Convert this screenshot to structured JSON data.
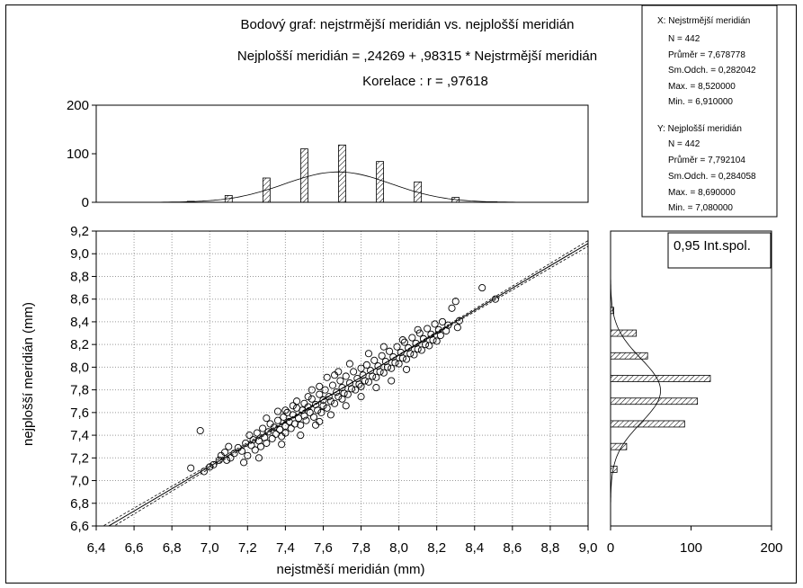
{
  "chart_data": {
    "type": "scatter",
    "title_lines": [
      "Bodový graf: nejstrmější meridián vs. nejplošší meridián",
      "Nejplošší meridián    = ,24269 + ,98315 * Nejstrmější meridián",
      "Korelace :   r = ,97618"
    ],
    "xlabel": "nejstměší meridián (mm)",
    "ylabel": "nejplošší meridián (mm)",
    "xlim": [
      6.4,
      9.0
    ],
    "ylim": [
      6.6,
      9.2
    ],
    "x_ticks": [
      "6,4",
      "6,6",
      "6,8",
      "7,0",
      "7,2",
      "7,4",
      "7,6",
      "7,8",
      "8,0",
      "8,2",
      "8,4",
      "8,6",
      "8,8",
      "9,0"
    ],
    "y_ticks": [
      "6,6",
      "6,8",
      "7,0",
      "7,2",
      "7,4",
      "7,6",
      "7,8",
      "8,0",
      "8,2",
      "8,4",
      "8,6",
      "8,8",
      "9,0",
      "9,2"
    ],
    "grid": true,
    "regression": {
      "intercept": 0.24269,
      "slope": 0.98315,
      "r": 0.97618
    },
    "confidence_label": "0,95 Int.spol.",
    "top_histogram": {
      "axis_ticks": [
        "0",
        "100",
        "200"
      ],
      "ylim": [
        0,
        200
      ],
      "bins": [
        6.9,
        7.1,
        7.3,
        7.5,
        7.7,
        7.9,
        8.1,
        8.3,
        8.5
      ],
      "counts": [
        2,
        14,
        50,
        110,
        118,
        84,
        42,
        10,
        1
      ],
      "normal": {
        "mean": 7.678778,
        "sd": 0.282042,
        "n": 442,
        "bin_width": 0.1
      }
    },
    "right_histogram": {
      "axis_ticks": [
        "0",
        "100",
        "200"
      ],
      "xlim": [
        0,
        200
      ],
      "bins": [
        7.1,
        7.3,
        7.5,
        7.7,
        7.9,
        8.1,
        8.3,
        8.5
      ],
      "counts": [
        8,
        20,
        92,
        108,
        124,
        46,
        32,
        4
      ],
      "normal": {
        "mean": 7.792104,
        "sd": 0.284058,
        "n": 442,
        "bin_width": 0.1
      }
    },
    "stats_x": {
      "header": "X:  Nejstrmější meridián",
      "lines": [
        "N = 442",
        "Průměr = 7,678778",
        "Sm.Odch. = 0,282042",
        "Max. = 8,520000",
        "Min. = 6,910000"
      ]
    },
    "stats_y": {
      "header": "Y:  Nejplošší meridián",
      "lines": [
        "N = 442",
        "Průměr = 7,792104",
        "Sm.Odch. = 0,284058",
        "Max. = 8,690000",
        "Min. = 7,080000"
      ]
    },
    "points": [
      [
        6.9,
        7.11
      ],
      [
        6.95,
        7.44
      ],
      [
        6.97,
        7.08
      ],
      [
        7.0,
        7.12
      ],
      [
        7.02,
        7.14
      ],
      [
        7.05,
        7.18
      ],
      [
        7.06,
        7.22
      ],
      [
        7.08,
        7.25
      ],
      [
        7.09,
        7.18
      ],
      [
        7.1,
        7.3
      ],
      [
        7.11,
        7.2
      ],
      [
        7.13,
        7.24
      ],
      [
        7.15,
        7.29
      ],
      [
        7.17,
        7.26
      ],
      [
        7.19,
        7.33
      ],
      [
        7.2,
        7.22
      ],
      [
        7.21,
        7.4
      ],
      [
        7.22,
        7.31
      ],
      [
        7.23,
        7.36
      ],
      [
        7.24,
        7.27
      ],
      [
        7.25,
        7.42
      ],
      [
        7.26,
        7.35
      ],
      [
        7.27,
        7.3
      ],
      [
        7.28,
        7.46
      ],
      [
        7.29,
        7.38
      ],
      [
        7.3,
        7.33
      ],
      [
        7.31,
        7.43
      ],
      [
        7.32,
        7.5
      ],
      [
        7.33,
        7.37
      ],
      [
        7.34,
        7.47
      ],
      [
        7.35,
        7.41
      ],
      [
        7.36,
        7.53
      ],
      [
        7.37,
        7.45
      ],
      [
        7.38,
        7.39
      ],
      [
        7.39,
        7.56
      ],
      [
        7.4,
        7.48
      ],
      [
        7.4,
        7.42
      ],
      [
        7.41,
        7.6
      ],
      [
        7.42,
        7.52
      ],
      [
        7.43,
        7.46
      ],
      [
        7.44,
        7.58
      ],
      [
        7.45,
        7.5
      ],
      [
        7.46,
        7.64
      ],
      [
        7.47,
        7.55
      ],
      [
        7.48,
        7.49
      ],
      [
        7.49,
        7.62
      ],
      [
        7.5,
        7.57
      ],
      [
        7.5,
        7.68
      ],
      [
        7.51,
        7.53
      ],
      [
        7.52,
        7.65
      ],
      [
        7.53,
        7.6
      ],
      [
        7.54,
        7.72
      ],
      [
        7.55,
        7.56
      ],
      [
        7.56,
        7.67
      ],
      [
        7.57,
        7.62
      ],
      [
        7.58,
        7.76
      ],
      [
        7.59,
        7.6
      ],
      [
        7.6,
        7.71
      ],
      [
        7.6,
        7.66
      ],
      [
        7.61,
        7.8
      ],
      [
        7.62,
        7.64
      ],
      [
        7.63,
        7.74
      ],
      [
        7.64,
        7.7
      ],
      [
        7.65,
        7.84
      ],
      [
        7.66,
        7.68
      ],
      [
        7.67,
        7.78
      ],
      [
        7.68,
        7.74
      ],
      [
        7.69,
        7.88
      ],
      [
        7.7,
        7.72
      ],
      [
        7.7,
        7.82
      ],
      [
        7.71,
        7.77
      ],
      [
        7.72,
        7.92
      ],
      [
        7.73,
        7.76
      ],
      [
        7.74,
        7.86
      ],
      [
        7.75,
        7.81
      ],
      [
        7.76,
        7.96
      ],
      [
        7.77,
        7.8
      ],
      [
        7.78,
        7.9
      ],
      [
        7.79,
        7.85
      ],
      [
        7.8,
        7.99
      ],
      [
        7.8,
        7.83
      ],
      [
        7.81,
        7.93
      ],
      [
        7.82,
        7.88
      ],
      [
        7.83,
        8.02
      ],
      [
        7.84,
        7.87
      ],
      [
        7.85,
        7.97
      ],
      [
        7.86,
        7.92
      ],
      [
        7.87,
        8.06
      ],
      [
        7.88,
        7.91
      ],
      [
        7.89,
        8.01
      ],
      [
        7.9,
        7.96
      ],
      [
        7.91,
        8.1
      ],
      [
        7.92,
        7.95
      ],
      [
        7.93,
        8.05
      ],
      [
        7.94,
        8.0
      ],
      [
        7.95,
        8.14
      ],
      [
        7.96,
        7.99
      ],
      [
        7.97,
        8.09
      ],
      [
        7.98,
        8.04
      ],
      [
        7.99,
        8.18
      ],
      [
        8.0,
        8.03
      ],
      [
        8.01,
        8.13
      ],
      [
        8.02,
        8.08
      ],
      [
        8.03,
        8.22
      ],
      [
        8.04,
        8.07
      ],
      [
        8.05,
        8.17
      ],
      [
        8.06,
        8.12
      ],
      [
        8.07,
        8.26
      ],
      [
        8.08,
        8.11
      ],
      [
        8.09,
        8.21
      ],
      [
        8.1,
        8.16
      ],
      [
        8.11,
        8.3
      ],
      [
        8.12,
        8.15
      ],
      [
        8.13,
        8.25
      ],
      [
        8.14,
        8.2
      ],
      [
        8.15,
        8.34
      ],
      [
        8.16,
        8.19
      ],
      [
        8.17,
        8.29
      ],
      [
        8.18,
        8.24
      ],
      [
        8.19,
        8.38
      ],
      [
        8.2,
        8.23
      ],
      [
        8.21,
        8.33
      ],
      [
        8.22,
        8.28
      ],
      [
        8.23,
        8.4
      ],
      [
        8.25,
        8.32
      ],
      [
        8.26,
        8.37
      ],
      [
        8.28,
        8.52
      ],
      [
        8.3,
        8.58
      ],
      [
        8.31,
        8.35
      ],
      [
        8.32,
        8.41
      ],
      [
        8.44,
        8.7
      ],
      [
        8.51,
        8.6
      ],
      [
        7.36,
        7.61
      ],
      [
        7.44,
        7.66
      ],
      [
        7.52,
        7.74
      ],
      [
        7.58,
        7.83
      ],
      [
        7.46,
        7.7
      ],
      [
        7.62,
        7.91
      ],
      [
        7.54,
        7.8
      ],
      [
        7.68,
        7.96
      ],
      [
        7.74,
        8.03
      ],
      [
        7.66,
        7.93
      ],
      [
        7.84,
        8.12
      ],
      [
        7.92,
        8.18
      ],
      [
        8.02,
        8.24
      ],
      [
        8.1,
        8.33
      ],
      [
        7.3,
        7.55
      ],
      [
        7.4,
        7.62
      ],
      [
        7.56,
        7.49
      ],
      [
        7.64,
        7.58
      ],
      [
        7.72,
        7.66
      ],
      [
        7.8,
        7.74
      ],
      [
        7.88,
        7.82
      ],
      [
        7.96,
        7.88
      ],
      [
        8.04,
        7.98
      ],
      [
        7.48,
        7.4
      ],
      [
        7.38,
        7.32
      ],
      [
        7.26,
        7.2
      ],
      [
        7.18,
        7.16
      ],
      [
        7.58,
        7.52
      ]
    ]
  }
}
